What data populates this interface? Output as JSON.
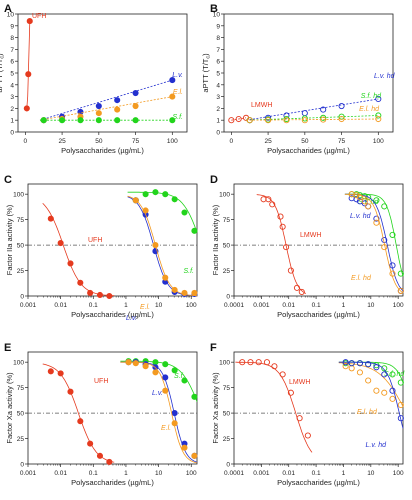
{
  "figure": {
    "panels": [
      {
        "letter": "A"
      },
      {
        "letter": "B"
      },
      {
        "letter": "C"
      },
      {
        "letter": "D"
      },
      {
        "letter": "E"
      },
      {
        "letter": "F"
      }
    ]
  },
  "colors": {
    "red": "#e53a1f",
    "blue": "#2330cf",
    "orange": "#f39a21",
    "green": "#22d41c",
    "axis": "#222222",
    "ref_line": "#555555"
  },
  "chart_data": [
    {
      "panel": "A",
      "type": "scatter",
      "xlabel": "Polysaccharides (µg/mL)",
      "ylabel": "aPTT (T/T",
      "ylabel_sub": "c",
      "ylabel_close": ")",
      "xscale": "linear",
      "xlim": [
        -5,
        110
      ],
      "ylim": [
        0,
        10
      ],
      "xticks": [
        0,
        25,
        50,
        75,
        100
      ],
      "xtick_labels": [
        "0",
        "25",
        "50",
        "75",
        "100"
      ],
      "yticks": [
        0,
        1,
        2,
        3,
        4,
        5,
        6,
        7,
        8,
        9,
        10
      ],
      "yticks_labels": [
        "0",
        "1",
        "2",
        "3",
        "4",
        "5",
        "6",
        "7",
        "8",
        "9",
        "10"
      ],
      "series": [
        {
          "name": "UFH",
          "color": "#e53a1f",
          "fill": true,
          "x": [
            1,
            2,
            3
          ],
          "y": [
            2.0,
            4.9,
            9.4
          ],
          "curve_x": [
            1,
            1.6,
            2.3,
            3
          ],
          "curve_y": [
            2.0,
            3.0,
            6.0,
            9.4
          ]
        },
        {
          "name": "L.v.",
          "italic": true,
          "color": "#2330cf",
          "fill": true,
          "x": [
            12.5,
            25,
            37.5,
            50,
            62.5,
            75,
            100
          ],
          "y": [
            1.0,
            1.3,
            1.7,
            2.2,
            2.7,
            3.3,
            4.4
          ],
          "fit": [
            [
              10,
              1.0
            ],
            [
              100,
              4.4
            ]
          ]
        },
        {
          "name": "E.l.",
          "italic": true,
          "color": "#f39a21",
          "fill": true,
          "x": [
            12.5,
            25,
            37.5,
            50,
            62.5,
            75,
            100
          ],
          "y": [
            1.0,
            1.1,
            1.3,
            1.6,
            1.9,
            2.2,
            3.0
          ],
          "fit": [
            [
              10,
              1.0
            ],
            [
              100,
              3.0
            ]
          ]
        },
        {
          "name": "S.f.",
          "italic": true,
          "color": "#22d41c",
          "fill": true,
          "x": [
            12.5,
            25,
            37.5,
            50,
            62.5,
            75,
            100
          ],
          "y": [
            1.0,
            1.0,
            1.0,
            1.0,
            1.0,
            1.0,
            1.0
          ],
          "fit": [
            [
              10,
              1.0
            ],
            [
              100,
              1.0
            ]
          ]
        }
      ]
    },
    {
      "panel": "B",
      "type": "scatter",
      "xlabel": "Polysaccharides (µg/mL)",
      "ylabel": "aPTT (T/T",
      "ylabel_sub": "c",
      "ylabel_close": ")",
      "xscale": "linear",
      "xlim": [
        -5,
        110
      ],
      "ylim": [
        0,
        10
      ],
      "xticks": [
        0,
        25,
        50,
        75,
        100
      ],
      "xtick_labels": [
        "0",
        "25",
        "50",
        "75",
        "100"
      ],
      "yticks": [
        0,
        1,
        2,
        3,
        4,
        5,
        6,
        7,
        8,
        9,
        10
      ],
      "yticks_labels": [
        "0",
        "1",
        "2",
        "3",
        "4",
        "5",
        "6",
        "7",
        "8",
        "9",
        "10"
      ],
      "series": [
        {
          "name": "LMWH",
          "color": "#e53a1f",
          "fill": false,
          "x": [
            0,
            5,
            10
          ],
          "y": [
            1.0,
            1.1,
            1.2
          ],
          "fit": [
            [
              0,
              1.0
            ],
            [
              10,
              1.2
            ]
          ]
        },
        {
          "name": "L.v. hd",
          "italic": true,
          "color": "#2330cf",
          "fill": false,
          "x": [
            12.5,
            25,
            37.5,
            50,
            62.5,
            75,
            100
          ],
          "y": [
            1.0,
            1.2,
            1.4,
            1.6,
            1.9,
            2.2,
            2.8
          ],
          "fit": [
            [
              10,
              1.0
            ],
            [
              100,
              2.8
            ]
          ]
        },
        {
          "name": "S.f. hd",
          "italic": true,
          "color": "#22d41c",
          "fill": false,
          "x": [
            12.5,
            25,
            37.5,
            50,
            62.5,
            75,
            100
          ],
          "y": [
            1.0,
            1.05,
            1.1,
            1.15,
            1.2,
            1.3,
            1.4
          ],
          "fit": [
            [
              10,
              1.0
            ],
            [
              100,
              1.4
            ]
          ]
        },
        {
          "name": "E.l. hd",
          "italic": true,
          "color": "#f39a21",
          "fill": false,
          "x": [
            12.5,
            25,
            37.5,
            50,
            62.5,
            75,
            100
          ],
          "y": [
            1.0,
            1.0,
            1.0,
            1.0,
            1.05,
            1.1,
            1.1
          ],
          "fit": [
            [
              10,
              1.0
            ],
            [
              100,
              1.1
            ]
          ]
        }
      ]
    },
    {
      "panel": "C",
      "type": "scatter",
      "xlabel": "Polysaccharides (µg/mL)",
      "ylabel": "Factor IIa activity (%)",
      "xscale": "log",
      "xlim": [
        0.001,
        150
      ],
      "ylim": [
        0,
        110
      ],
      "xticks": [
        0.001,
        0.01,
        0.1,
        1,
        10,
        100
      ],
      "xtick_labels": [
        "0.001",
        "0.01",
        "0.1",
        "1",
        "10",
        "100"
      ],
      "yticks": [
        0,
        25,
        50,
        75,
        100
      ],
      "yticks_labels": [
        "0",
        "25",
        "50",
        "75",
        "100"
      ],
      "refline": 50,
      "series": [
        {
          "name": "UFH",
          "color": "#e53a1f",
          "fill": true,
          "x": [
            0.005,
            0.01,
            0.02,
            0.04,
            0.08,
            0.16,
            0.31
          ],
          "y": [
            76,
            52,
            32,
            13,
            3,
            1,
            0
          ],
          "ic50": 0.012,
          "hill": 1.6
        },
        {
          "name": "S.f.",
          "italic": true,
          "color": "#22d41c",
          "fill": true,
          "x": [
            2,
            4,
            8,
            16,
            31,
            62,
            125
          ],
          "y": [
            94,
            100,
            102,
            100,
            95,
            82,
            64
          ],
          "ic50": 200,
          "hill": 1.6,
          "top": 102
        },
        {
          "name": "L.v.",
          "italic": true,
          "color": "#2330cf",
          "fill": true,
          "x": [
            2,
            4,
            8,
            16,
            31,
            62,
            125
          ],
          "y": [
            94,
            80,
            44,
            14,
            4,
            2,
            2
          ],
          "ic50": 7,
          "hill": 2.0,
          "top": 100
        },
        {
          "name": "E.l.",
          "italic": true,
          "color": "#f39a21",
          "fill": true,
          "x": [
            2,
            4,
            8,
            16,
            31,
            62,
            125
          ],
          "y": [
            94,
            84,
            50,
            18,
            6,
            3,
            3
          ],
          "ic50": 8,
          "hill": 2.0,
          "top": 100
        }
      ]
    },
    {
      "panel": "D",
      "type": "scatter",
      "xlabel": "Polysaccharides (µg/mL)",
      "ylabel": "Factor IIa activity (%)",
      "xscale": "log",
      "xlim": [
        0.0001,
        150
      ],
      "ylim": [
        0,
        110
      ],
      "xticks": [
        0.0001,
        0.001,
        0.01,
        0.1,
        1,
        10,
        100
      ],
      "xtick_labels": [
        "0.0001",
        "0.001",
        "0.01",
        "0.1",
        "1",
        "10",
        "100"
      ],
      "yticks": [
        0,
        25,
        50,
        75,
        100
      ],
      "yticks_labels": [
        "0",
        "25",
        "50",
        "75",
        "100"
      ],
      "refline": 50,
      "series": [
        {
          "name": "LMWH",
          "color": "#e53a1f",
          "fill": false,
          "x": [
            0.0012,
            0.0018,
            0.0025,
            0.005,
            0.006,
            0.008,
            0.012,
            0.02,
            0.03
          ],
          "y": [
            95,
            95,
            90,
            78,
            68,
            48,
            25,
            8,
            4
          ],
          "ic50": 0.008,
          "hill": 2.2
        },
        {
          "name": "S.f. hd",
          "italic": true,
          "color": "#22d41c",
          "fill": false,
          "x": [
            2,
            3,
            4,
            6,
            8,
            16,
            31,
            62,
            125
          ],
          "y": [
            100,
            100,
            99,
            98,
            97,
            94,
            88,
            60,
            22
          ],
          "ic50": 85,
          "hill": 2.5
        },
        {
          "name": "L.v. hd",
          "italic": true,
          "color": "#2330cf",
          "fill": false,
          "x": [
            2,
            3,
            4,
            6,
            8,
            16,
            31,
            62,
            125
          ],
          "y": [
            96,
            95,
            93,
            91,
            88,
            76,
            55,
            30,
            5
          ],
          "ic50": 40,
          "hill": 2.2
        },
        {
          "name": "E.l. hd",
          "italic": true,
          "color": "#f39a21",
          "fill": false,
          "x": [
            2,
            3,
            4,
            6,
            8,
            16,
            31,
            62,
            125
          ],
          "y": [
            100,
            99,
            97,
            93,
            88,
            72,
            48,
            22,
            5
          ],
          "ic50": 32,
          "hill": 2.2
        }
      ]
    },
    {
      "panel": "E",
      "type": "scatter",
      "xlabel": "Polysaccharides (µg/mL)",
      "ylabel": "Factor Xa activity (%)",
      "xscale": "log",
      "xlim": [
        0.001,
        150
      ],
      "ylim": [
        0,
        110
      ],
      "xticks": [
        0.001,
        0.01,
        0.1,
        1,
        10,
        100
      ],
      "xtick_labels": [
        "0.001",
        "0.01",
        "0.1",
        "1",
        "10",
        "100"
      ],
      "yticks": [
        0,
        25,
        50,
        75,
        100
      ],
      "yticks_labels": [
        "0",
        "25",
        "50",
        "75",
        "100"
      ],
      "refline": 50,
      "series": [
        {
          "name": "UFH",
          "color": "#e53a1f",
          "fill": true,
          "x": [
            0.005,
            0.01,
            0.02,
            0.04,
            0.08,
            0.16,
            0.31
          ],
          "y": [
            91,
            89,
            71,
            42,
            20,
            8,
            2
          ],
          "ic50": 0.035,
          "hill": 1.6
        },
        {
          "name": "S.f.",
          "italic": true,
          "color": "#22d41c",
          "fill": true,
          "x": [
            1.2,
            2,
            4,
            8,
            16,
            31,
            62,
            125
          ],
          "y": [
            101,
            101,
            101,
            100,
            98,
            92,
            82,
            66
          ],
          "ic50": 200,
          "hill": 1.5,
          "top": 101
        },
        {
          "name": "L.v.",
          "italic": true,
          "color": "#2330cf",
          "fill": true,
          "x": [
            1.2,
            2,
            4,
            8,
            16,
            31,
            62,
            125
          ],
          "y": [
            100,
            100,
            98,
            95,
            85,
            50,
            20,
            8
          ],
          "ic50": 30,
          "hill": 2.5,
          "top": 100
        },
        {
          "name": "E.l.",
          "italic": true,
          "color": "#f39a21",
          "fill": true,
          "x": [
            1.2,
            2,
            4,
            8,
            16,
            31,
            62,
            125
          ],
          "y": [
            100,
            99,
            96,
            90,
            72,
            40,
            16,
            8
          ],
          "ic50": 25,
          "hill": 2.5,
          "top": 100
        }
      ]
    },
    {
      "panel": "F",
      "type": "scatter",
      "xlabel": "Polysaccharides (µg/mL)",
      "ylabel": "Factor Xa activity (%)",
      "xscale": "log",
      "xlim": [
        0.0001,
        150
      ],
      "ylim": [
        0,
        110
      ],
      "xticks": [
        0.0001,
        0.001,
        0.01,
        0.1,
        1,
        10,
        100
      ],
      "xtick_labels": [
        "0.0001",
        "0.001",
        "0.01",
        "0.1",
        "1",
        "10",
        "100"
      ],
      "yticks": [
        0,
        25,
        50,
        75,
        100
      ],
      "yticks_labels": [
        "0",
        "25",
        "50",
        "75",
        "100"
      ],
      "refline": 50,
      "series": [
        {
          "name": "LMWH",
          "color": "#e53a1f",
          "fill": false,
          "x": [
            0.0002,
            0.0004,
            0.0008,
            0.0016,
            0.003,
            0.006,
            0.012,
            0.025,
            0.05
          ],
          "y": [
            100,
            100,
            100,
            100,
            96,
            88,
            70,
            45,
            28
          ],
          "ic50": 0.018,
          "hill": 1.5
        },
        {
          "name": "S.f. hd",
          "italic": true,
          "color": "#22d41c",
          "fill": false,
          "x": [
            1.2,
            2,
            4,
            8,
            16,
            31,
            62,
            125
          ],
          "y": [
            99,
            99,
            99,
            98,
            97,
            94,
            88,
            80
          ],
          "ic50": 300,
          "hill": 2.0
        },
        {
          "name": "E.l. hd",
          "italic": true,
          "color": "#f39a21",
          "fill": false,
          "x": [
            1.2,
            2,
            4,
            8,
            16,
            31,
            62,
            125
          ],
          "y": [
            96,
            94,
            90,
            82,
            72,
            70,
            64,
            58
          ],
          "ic50": 200,
          "hill": 0.9
        },
        {
          "name": "L.v. hd",
          "italic": true,
          "color": "#2330cf",
          "fill": false,
          "x": [
            1.2,
            2,
            4,
            8,
            16,
            31,
            62,
            125
          ],
          "y": [
            100,
            99,
            99,
            98,
            95,
            88,
            72,
            45
          ],
          "ic50": 110,
          "hill": 2.0
        }
      ]
    }
  ]
}
